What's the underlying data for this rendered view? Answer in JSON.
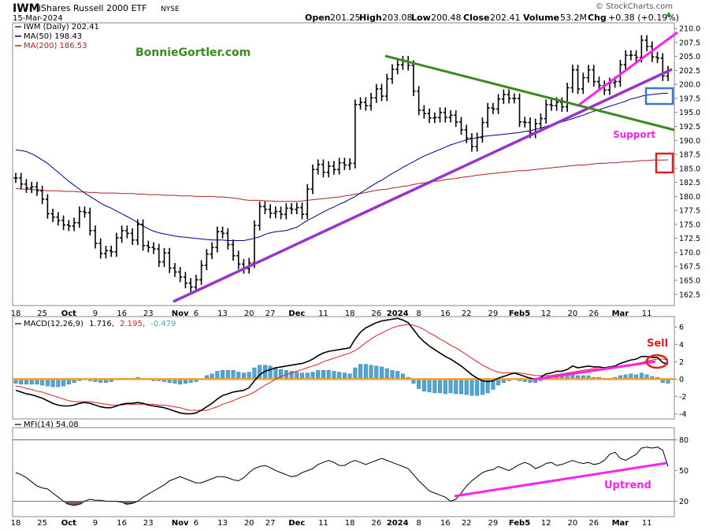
{
  "header": {
    "symbol": "IWM",
    "name": "iShares Russell 2000 ETF",
    "exchange": "NYSE",
    "date": "15-Mar-2024",
    "open_label": "Open",
    "open": "201.25",
    "high_label": "High",
    "high": "203.08",
    "low_label": "Low",
    "low": "200.48",
    "close_label": "Close",
    "close": "202.41",
    "volume_label": "Volume",
    "volume": "53.2M",
    "chg_label": "Chg",
    "chg": "+0.38 (+0.19%)",
    "credit": "© StockCharts.com"
  },
  "colors": {
    "price": "#000000",
    "ma50": "#00008b",
    "ma200": "#b22222",
    "trend_purple": "#9933cc",
    "trend_magenta": "#ff22ee",
    "trend_green": "#3a8a1f",
    "watermark": "#3a8a1f",
    "macd_line": "#000000",
    "signal_line": "#e02020",
    "histogram": "#4da6d6",
    "zero_line": "#f0a030",
    "mfi_line": "#000000",
    "annotation_red": "#e02020",
    "box_blue": "#3a78d8"
  },
  "annotations": {
    "watermark": "BonnieGortler.com",
    "support": "Support",
    "sell": "Sell",
    "uptrend": "Uptrend"
  },
  "chart_data": [
    {
      "type": "line",
      "panel": "price",
      "title": "IWM (Daily) 202.41",
      "legend": [
        {
          "name": "IWM (Daily)",
          "value": "202.41"
        },
        {
          "name": "MA(50)",
          "value": "198.43"
        },
        {
          "name": "MA(200)",
          "value": "186.53"
        }
      ],
      "ylim": [
        160.5,
        211
      ],
      "yticks": [
        162.5,
        165.0,
        167.5,
        170.0,
        172.5,
        175.0,
        177.5,
        180.0,
        182.5,
        185.0,
        187.5,
        190.0,
        192.5,
        195.0,
        197.5,
        200.0,
        202.5,
        205.0,
        207.5,
        210.0
      ],
      "x_tick_labels": [
        {
          "label": "18",
          "i": 0
        },
        {
          "label": "25",
          "i": 5
        },
        {
          "label": "Oct",
          "i": 10
        },
        {
          "label": "9",
          "i": 15
        },
        {
          "label": "16",
          "i": 20
        },
        {
          "label": "23",
          "i": 25
        },
        {
          "label": "Nov",
          "i": 31
        },
        {
          "label": "6",
          "i": 34
        },
        {
          "label": "13",
          "i": 39
        },
        {
          "label": "20",
          "i": 44
        },
        {
          "label": "27",
          "i": 48
        },
        {
          "label": "Dec",
          "i": 53
        },
        {
          "label": "11",
          "i": 58
        },
        {
          "label": "18",
          "i": 63
        },
        {
          "label": "26",
          "i": 68
        },
        {
          "label": "2024",
          "i": 72
        },
        {
          "label": "8",
          "i": 76
        },
        {
          "label": "16",
          "i": 81
        },
        {
          "label": "22",
          "i": 85
        },
        {
          "label": "29",
          "i": 90
        },
        {
          "label": "Feb5",
          "i": 95
        },
        {
          "label": "12",
          "i": 100
        },
        {
          "label": "20",
          "i": 105
        },
        {
          "label": "26",
          "i": 109
        },
        {
          "label": "Mar",
          "i": 114
        },
        {
          "label": "11",
          "i": 119
        }
      ],
      "n_sessions": 124,
      "close": [
        183.3,
        182.2,
        181.5,
        181.7,
        181.0,
        179.5,
        176.9,
        176.3,
        175.7,
        174.9,
        174.7,
        175.3,
        177.3,
        177.1,
        173.9,
        171.6,
        169.8,
        170.3,
        170.1,
        172.6,
        173.9,
        173.4,
        172.2,
        175.0,
        171.2,
        170.9,
        170.6,
        168.3,
        169.9,
        167.2,
        166.5,
        165.6,
        164.5,
        163.8,
        165.1,
        167.7,
        169.7,
        170.9,
        173.7,
        173.4,
        171.4,
        169.4,
        167.9,
        167.1,
        168.1,
        174.8,
        178.2,
        177.7,
        177.0,
        177.3,
        176.8,
        177.9,
        177.7,
        178.0,
        176.8,
        181.3,
        184.8,
        185.7,
        184.3,
        185.4,
        184.8,
        186.0,
        185.6,
        185.9,
        196.4,
        196.8,
        196.2,
        197.6,
        199.2,
        197.9,
        201.0,
        202.7,
        203.5,
        204.2,
        203.4,
        198.8,
        195.4,
        194.8,
        194.0,
        194.1,
        195.0,
        194.1,
        194.5,
        193.3,
        191.9,
        190.4,
        188.9,
        190.5,
        193.2,
        195.8,
        195.6,
        197.4,
        198.2,
        197.5,
        197.5,
        193.3,
        193.2,
        191.3,
        193.0,
        193.9,
        196.4,
        196.2,
        196.8,
        196.0,
        199.4,
        202.6,
        199.2,
        201.2,
        202.6,
        200.5,
        199.8,
        199.0,
        200.3,
        200.5,
        203.5,
        205.2,
        205.2,
        204.8,
        207.9,
        206.8,
        204.9,
        204.7,
        201.5,
        202.4
      ],
      "ma50": [
        188.3,
        188.2,
        188.0,
        187.6,
        187.1,
        186.5,
        185.9,
        185.1,
        184.3,
        183.5,
        182.7,
        182.0,
        181.3,
        180.6,
        180.0,
        179.4,
        178.8,
        178.3,
        177.9,
        177.4,
        176.9,
        176.4,
        175.9,
        175.3,
        174.7,
        174.2,
        173.8,
        173.5,
        173.3,
        173.1,
        172.9,
        172.8,
        172.7,
        172.6,
        172.5,
        172.4,
        172.3,
        172.2,
        172.2,
        172.2,
        172.1,
        172.1,
        172.1,
        172.1,
        172.3,
        172.5,
        172.8,
        173.2,
        173.5,
        173.7,
        173.8,
        173.9,
        174.2,
        174.5,
        175.1,
        175.7,
        176.2,
        176.7,
        177.2,
        177.7,
        178.1,
        178.6,
        179.0,
        179.5,
        180.0,
        180.6,
        181.2,
        181.8,
        182.4,
        182.9,
        183.5,
        184.1,
        184.6,
        185.2,
        185.7,
        186.2,
        186.7,
        187.2,
        187.6,
        188.0,
        188.4,
        188.8,
        189.2,
        189.5,
        189.8,
        190.1,
        190.3,
        190.5,
        190.7,
        190.8,
        190.9,
        191.0,
        191.1,
        191.2,
        191.3,
        191.4,
        191.6,
        191.7,
        192.0,
        192.2,
        192.5,
        192.8,
        193.1,
        193.3,
        193.6,
        193.9,
        194.2,
        194.5,
        194.9,
        195.2,
        195.5,
        195.8,
        196.1,
        196.4,
        196.7,
        197.0,
        197.4,
        197.6,
        197.9,
        198.1,
        198.2,
        198.3,
        198.4,
        198.43
      ],
      "ma200": [
        181.4,
        181.3,
        181.3,
        181.2,
        181.2,
        181.1,
        181.0,
        181.0,
        181.0,
        180.9,
        180.9,
        180.9,
        180.8,
        180.8,
        180.7,
        180.7,
        180.6,
        180.6,
        180.6,
        180.6,
        180.5,
        180.5,
        180.5,
        180.4,
        180.4,
        180.3,
        180.3,
        180.3,
        180.2,
        180.2,
        180.2,
        180.1,
        180.1,
        180.1,
        180.0,
        180.0,
        180.0,
        180.0,
        179.9,
        179.9,
        179.8,
        179.7,
        179.6,
        179.4,
        179.3,
        179.3,
        179.3,
        179.2,
        179.2,
        179.1,
        179.1,
        179.1,
        179.1,
        179.1,
        179.2,
        179.3,
        179.4,
        179.5,
        179.6,
        179.7,
        179.8,
        179.9,
        180.1,
        180.2,
        180.4,
        180.5,
        180.7,
        180.9,
        181.1,
        181.2,
        181.3,
        181.5,
        181.6,
        181.8,
        181.9,
        182.1,
        182.3,
        182.4,
        182.6,
        182.7,
        182.8,
        183.0,
        183.1,
        183.2,
        183.4,
        183.5,
        183.6,
        183.8,
        183.9,
        184.0,
        184.1,
        184.2,
        184.3,
        184.4,
        184.5,
        184.6,
        184.6,
        184.7,
        184.8,
        184.9,
        185.0,
        185.1,
        185.2,
        185.3,
        185.4,
        185.5,
        185.6,
        185.6,
        185.7,
        185.8,
        185.9,
        185.9,
        186.0,
        186.0,
        186.1,
        186.2,
        186.2,
        186.3,
        186.4,
        186.4,
        186.5,
        186.5,
        186.5,
        186.53
      ]
    },
    {
      "type": "line",
      "panel": "macd",
      "title": "MACD(12,26,9)",
      "legend": [
        {
          "name": "MACD(12,26,9)",
          "value": "1.716"
        },
        {
          "name": "signal",
          "value": "2.195"
        },
        {
          "name": "histogram",
          "value": "-0.479"
        }
      ],
      "ylim": [
        -4.6,
        7.2
      ],
      "yticks": [
        -4,
        -2,
        0,
        2,
        4,
        6
      ],
      "macd": [
        -1.3,
        -1.5,
        -1.7,
        -1.8,
        -2.0,
        -2.2,
        -2.5,
        -2.8,
        -3.0,
        -3.1,
        -3.1,
        -3.0,
        -2.8,
        -2.7,
        -2.8,
        -3.0,
        -3.2,
        -3.3,
        -3.3,
        -3.1,
        -2.9,
        -2.8,
        -2.8,
        -2.7,
        -2.8,
        -3.0,
        -3.1,
        -3.2,
        -3.3,
        -3.5,
        -3.7,
        -3.9,
        -4.0,
        -4.0,
        -3.9,
        -3.6,
        -3.2,
        -2.8,
        -2.3,
        -1.9,
        -1.7,
        -1.5,
        -1.4,
        -1.3,
        -1.0,
        -0.2,
        0.5,
        0.9,
        1.1,
        1.3,
        1.4,
        1.5,
        1.6,
        1.7,
        1.8,
        2.0,
        2.3,
        2.7,
        3.0,
        3.2,
        3.3,
        3.4,
        3.5,
        3.6,
        4.6,
        5.4,
        5.9,
        6.2,
        6.5,
        6.7,
        6.8,
        6.9,
        7.0,
        6.8,
        6.5,
        5.7,
        4.9,
        4.3,
        3.8,
        3.4,
        3.0,
        2.6,
        2.3,
        1.9,
        1.5,
        1.0,
        0.5,
        0.1,
        -0.2,
        -0.3,
        -0.2,
        0.1,
        0.3,
        0.5,
        0.7,
        0.5,
        0.3,
        0.1,
        0.0,
        0.2,
        0.6,
        0.7,
        0.9,
        0.9,
        1.1,
        1.5,
        1.3,
        1.4,
        1.5,
        1.4,
        1.4,
        1.3,
        1.4,
        1.5,
        1.8,
        2.0,
        2.2,
        2.3,
        2.6,
        2.6,
        2.5,
        2.5,
        1.9,
        1.716
      ],
      "signal": [
        -0.8,
        -0.9,
        -1.1,
        -1.2,
        -1.4,
        -1.5,
        -1.7,
        -1.9,
        -2.1,
        -2.3,
        -2.5,
        -2.6,
        -2.6,
        -2.6,
        -2.6,
        -2.7,
        -2.8,
        -2.9,
        -3.0,
        -3.0,
        -3.0,
        -2.9,
        -2.9,
        -2.9,
        -2.9,
        -2.9,
        -2.9,
        -3.0,
        -3.0,
        -3.1,
        -3.2,
        -3.3,
        -3.5,
        -3.6,
        -3.6,
        -3.6,
        -3.6,
        -3.4,
        -3.2,
        -2.9,
        -2.7,
        -2.5,
        -2.2,
        -2.0,
        -1.8,
        -1.5,
        -1.1,
        -0.7,
        -0.4,
        0.0,
        0.3,
        0.5,
        0.7,
        0.9,
        1.1,
        1.3,
        1.5,
        1.7,
        2.0,
        2.2,
        2.4,
        2.6,
        2.8,
        3.0,
        3.3,
        3.7,
        4.2,
        4.6,
        5.0,
        5.3,
        5.6,
        5.9,
        6.1,
        6.2,
        6.3,
        6.2,
        6.0,
        5.7,
        5.3,
        5.0,
        4.6,
        4.3,
        3.9,
        3.6,
        3.2,
        2.8,
        2.4,
        2.0,
        1.6,
        1.3,
        1.0,
        0.8,
        0.7,
        0.7,
        0.7,
        0.7,
        0.6,
        0.5,
        0.4,
        0.4,
        0.4,
        0.4,
        0.5,
        0.6,
        0.7,
        0.8,
        0.9,
        1.0,
        1.1,
        1.2,
        1.2,
        1.2,
        1.3,
        1.3,
        1.4,
        1.5,
        1.6,
        1.8,
        1.9,
        2.1,
        2.2,
        2.3,
        2.3,
        2.195
      ]
    },
    {
      "type": "line",
      "panel": "mfi",
      "title": "MFI(14)",
      "legend": [
        {
          "name": "MFI(14)",
          "value": "54.08"
        }
      ],
      "ylim": [
        5,
        92
      ],
      "yticks": [
        20,
        50,
        80
      ],
      "bands": [
        20,
        80
      ],
      "values": [
        48,
        46,
        43,
        39,
        35,
        33,
        32,
        28,
        24,
        20,
        17,
        16,
        17,
        20,
        22,
        21,
        21,
        20,
        20,
        20,
        19,
        17,
        18,
        20,
        24,
        27,
        30,
        33,
        36,
        40,
        42,
        44,
        42,
        40,
        38,
        38,
        40,
        42,
        44,
        44,
        43,
        41,
        40,
        43,
        48,
        52,
        54,
        55,
        53,
        50,
        48,
        46,
        44,
        45,
        48,
        50,
        52,
        56,
        58,
        60,
        58,
        55,
        55,
        58,
        60,
        58,
        56,
        58,
        60,
        62,
        60,
        58,
        56,
        54,
        52,
        46,
        40,
        35,
        30,
        28,
        26,
        24,
        20,
        22,
        28,
        35,
        40,
        44,
        48,
        50,
        51,
        54,
        52,
        50,
        53,
        56,
        58,
        56,
        52,
        54,
        57,
        58,
        55,
        56,
        58,
        60,
        58,
        57,
        58,
        56,
        57,
        60,
        66,
        68,
        62,
        60,
        63,
        66,
        72,
        73,
        72,
        73,
        70,
        54.08
      ]
    }
  ]
}
